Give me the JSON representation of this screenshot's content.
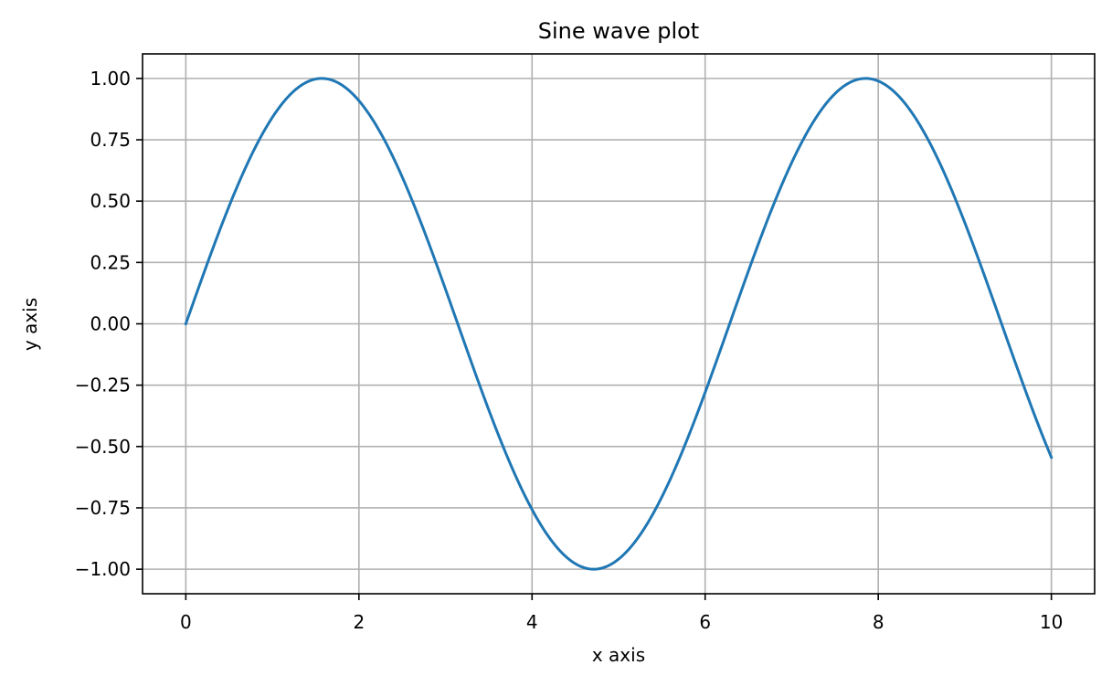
{
  "chart_data": {
    "type": "line",
    "title": "Sine wave plot",
    "xlabel": "x axis",
    "ylabel": "y axis",
    "xlim": [
      -0.5,
      10.5
    ],
    "ylim": [
      -1.1,
      1.1
    ],
    "grid": true,
    "xticks": [
      0,
      2,
      4,
      6,
      8,
      10
    ],
    "xtick_labels": [
      "0",
      "2",
      "4",
      "6",
      "8",
      "10"
    ],
    "yticks": [
      1.0,
      0.75,
      0.5,
      0.25,
      0.0,
      -0.25,
      -0.5,
      -0.75,
      -1.0
    ],
    "ytick_labels": [
      "1.00",
      "0.75",
      "0.50",
      "0.25",
      "0.00",
      "−0.25",
      "−0.50",
      "−0.75",
      "−1.00"
    ],
    "colors": {
      "line": "#1f77b4",
      "grid": "#b0b0b0",
      "axes": "#000000"
    },
    "series": [
      {
        "x": [
          0,
          0.5,
          1,
          1.5,
          1.5708,
          2,
          2.5,
          3,
          3.1416,
          3.5,
          4,
          4.5,
          4.7124,
          5,
          5.5,
          6,
          6.2832,
          6.5,
          7,
          7.5,
          7.854,
          8,
          8.5,
          9,
          9.4248,
          9.5,
          10
        ],
        "y": [
          0,
          0.479,
          0.841,
          0.997,
          1.0,
          0.909,
          0.598,
          0.141,
          0.0,
          -0.351,
          -0.757,
          -0.978,
          -1.0,
          -0.959,
          -0.706,
          -0.279,
          0.0,
          0.215,
          0.657,
          0.938,
          1.0,
          0.989,
          0.798,
          0.412,
          0.0,
          -0.075,
          -0.544
        ]
      }
    ]
  }
}
